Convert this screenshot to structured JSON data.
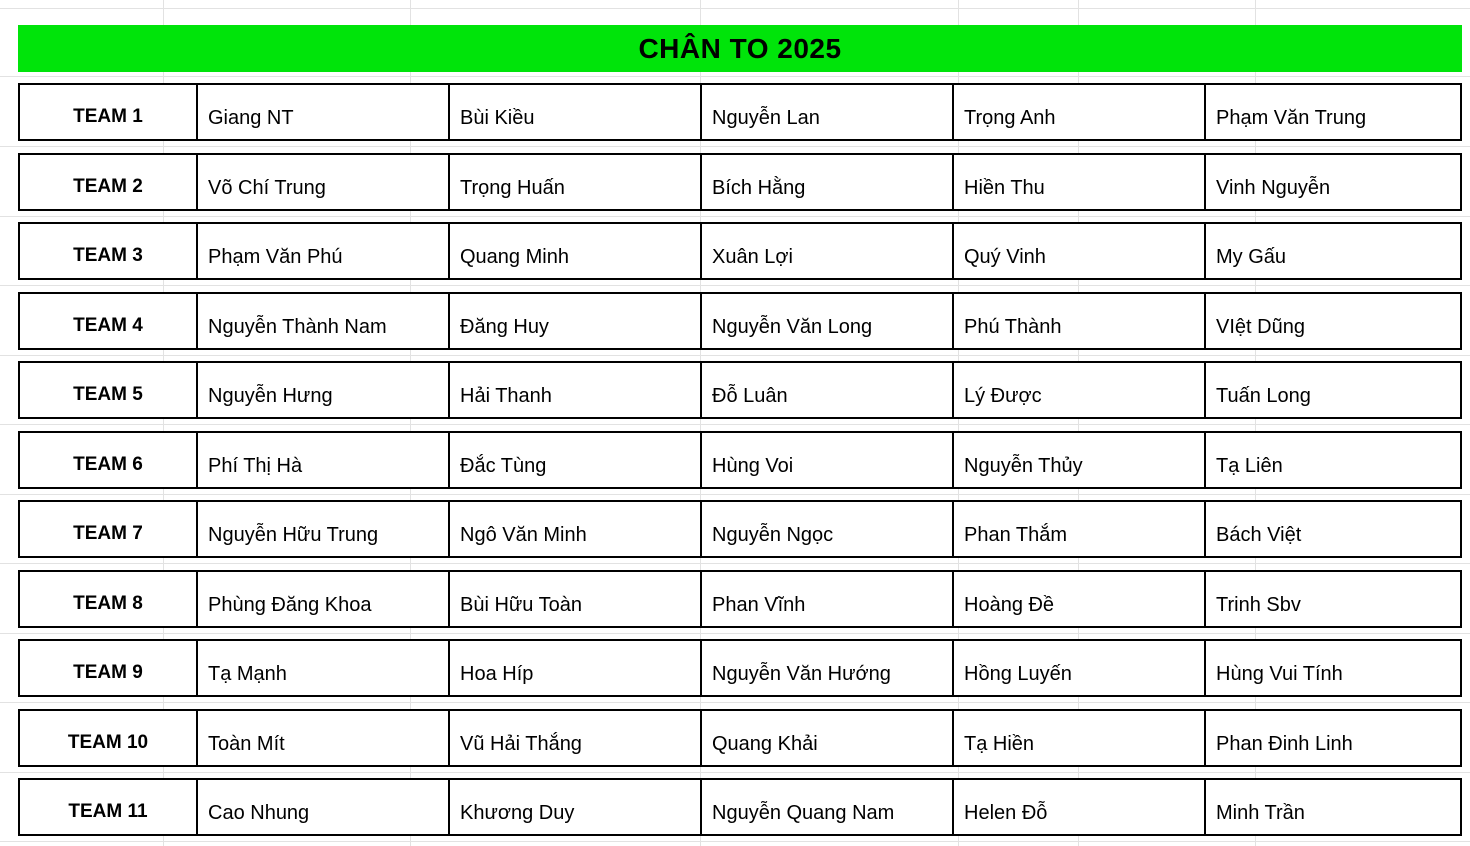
{
  "title": "CHÂN TO 2025",
  "colors": {
    "banner_green": "#00e40a",
    "border_black": "#000000",
    "gridline_gray": "#e2e2e2"
  },
  "teams": [
    {
      "label": "TEAM 1",
      "members": [
        "Giang NT",
        "Bùi Kiều",
        "Nguyễn Lan",
        "Trọng Anh",
        "Phạm Văn Trung"
      ]
    },
    {
      "label": "TEAM 2",
      "members": [
        "Võ Chí Trung",
        "Trọng Huấn",
        "Bích Hằng",
        "Hiền Thu",
        "Vinh Nguyễn"
      ]
    },
    {
      "label": "TEAM 3",
      "members": [
        "Phạm Văn Phú",
        "Quang Minh",
        "Xuân Lợi",
        "Quý Vinh",
        "My Gấu"
      ]
    },
    {
      "label": "TEAM 4",
      "members": [
        "Nguyễn Thành Nam",
        "Đăng Huy",
        "Nguyễn Văn Long",
        "Phú Thành",
        "VIệt Dũng"
      ]
    },
    {
      "label": "TEAM 5",
      "members": [
        "Nguyễn Hưng",
        "Hải Thanh",
        "Đỗ Luân",
        "Lý Được",
        "Tuấn Long"
      ]
    },
    {
      "label": "TEAM 6",
      "members": [
        "Phí Thị Hà",
        "Đắc Tùng",
        "Hùng Voi",
        "Nguyễn Thủy",
        "Tạ Liên"
      ]
    },
    {
      "label": "TEAM 7",
      "members": [
        "Nguyễn Hữu Trung",
        "Ngô Văn Minh",
        "Nguyễn Ngọc",
        "Phan Thắm",
        "Bách Việt"
      ]
    },
    {
      "label": "TEAM 8",
      "members": [
        "Phùng Đăng Khoa",
        "Bùi Hữu Toàn",
        "Phan Vĩnh",
        "Hoàng Đề",
        "Trinh Sbv"
      ]
    },
    {
      "label": "TEAM 9",
      "members": [
        "Tạ Mạnh",
        "Hoa Híp",
        "Nguyễn Văn Hướng",
        "Hồng Luyến",
        "Hùng Vui Tính"
      ]
    },
    {
      "label": "TEAM 10",
      "members": [
        "Toàn Mít",
        "Vũ Hải Thắng",
        "Quang Khải",
        "Tạ Hiền",
        "Phan Đinh Linh"
      ]
    },
    {
      "label": "TEAM 11",
      "members": [
        "Cao Nhung",
        "Khương Duy",
        "Nguyễn Quang Nam",
        "Helen Đỗ",
        "Minh Trần"
      ]
    }
  ]
}
